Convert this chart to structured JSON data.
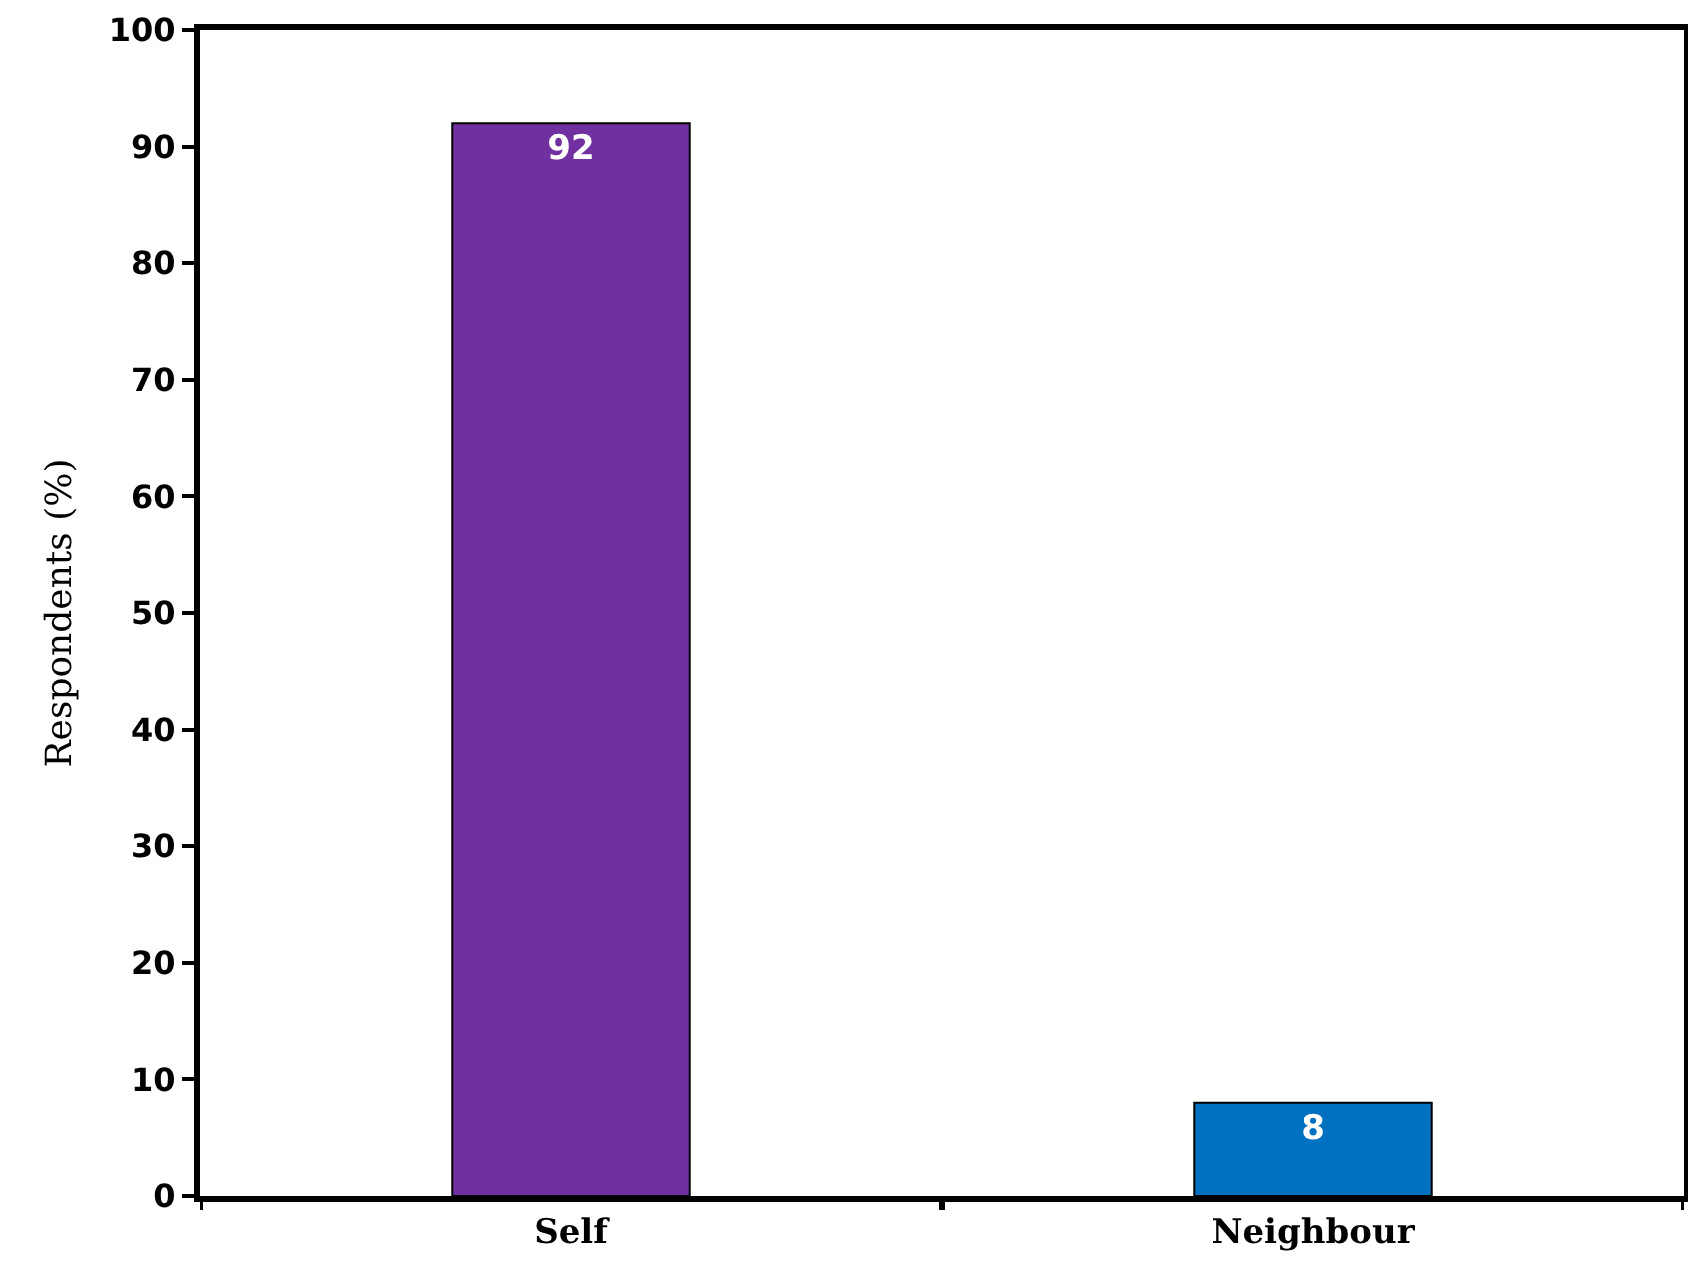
{
  "chart_data": {
    "type": "bar",
    "ylabel": "Respondents (%)",
    "categories": [
      "Self",
      "Neighbour"
    ],
    "values": [
      92,
      8
    ],
    "colors": [
      "#7030a0",
      "#0070c0"
    ],
    "ylim": [
      0,
      100
    ],
    "yticks": [
      0,
      10,
      20,
      30,
      40,
      50,
      60,
      70,
      80,
      90,
      100
    ],
    "data_labels": true
  }
}
